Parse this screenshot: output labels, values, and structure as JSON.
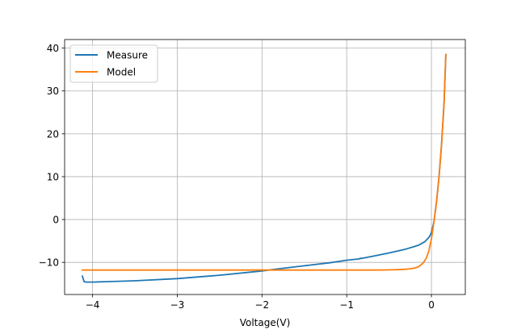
{
  "chart_data": {
    "type": "line",
    "title": "",
    "xlabel": "Voltage(V)",
    "ylabel": "",
    "xlim": [
      -4.33,
      0.4
    ],
    "ylim": [
      -17.5,
      42.0
    ],
    "grid": true,
    "xticks": [
      -4,
      -3,
      -2,
      -1,
      0
    ],
    "xtick_labels": [
      "−4",
      "−3",
      "−2",
      "−1",
      "0"
    ],
    "yticks": [
      -10,
      0,
      10,
      20,
      30,
      40
    ],
    "ytick_labels": [
      "−10",
      "0",
      "10",
      "20",
      "30",
      "40"
    ],
    "legend": {
      "placement": "top-left"
    },
    "series": [
      {
        "name": "Measure",
        "color": "#1f77b4",
        "x": [
          -4.12,
          -4.1,
          -4.08,
          -4.0,
          -3.5,
          -3.0,
          -2.5,
          -2.0,
          -1.8,
          -1.5,
          -1.2,
          -1.0,
          -0.85,
          -0.84,
          -0.83,
          -0.7,
          -0.5,
          -0.3,
          -0.15,
          -0.08,
          -0.04,
          -0.02,
          0.0,
          0.03,
          0.06,
          0.09,
          0.12,
          0.15,
          0.17
        ],
        "y": [
          -13.2,
          -14.5,
          -14.6,
          -14.6,
          -14.3,
          -13.8,
          -13.0,
          -12.0,
          -11.5,
          -10.8,
          -10.1,
          -9.5,
          -9.2,
          -9.0,
          -9.1,
          -8.6,
          -7.8,
          -6.9,
          -6.0,
          -5.2,
          -4.4,
          -3.9,
          -3.0,
          -0.5,
          4.0,
          10.0,
          17.5,
          27.5,
          38.5
        ]
      },
      {
        "name": "Model",
        "color": "#ff7f0e",
        "x": [
          -4.12,
          -3.0,
          -2.0,
          -1.0,
          -0.6,
          -0.5,
          -0.4,
          -0.3,
          -0.25,
          -0.2,
          -0.15,
          -0.1,
          -0.06,
          -0.03,
          0.0,
          0.03,
          0.06,
          0.09,
          0.12,
          0.15,
          0.17
        ],
        "y": [
          -11.8,
          -11.8,
          -11.8,
          -11.8,
          -11.8,
          -11.75,
          -11.7,
          -11.6,
          -11.5,
          -11.35,
          -11.0,
          -10.2,
          -9.0,
          -7.3,
          -4.5,
          -0.5,
          4.0,
          10.0,
          17.5,
          27.5,
          38.5
        ]
      }
    ]
  }
}
